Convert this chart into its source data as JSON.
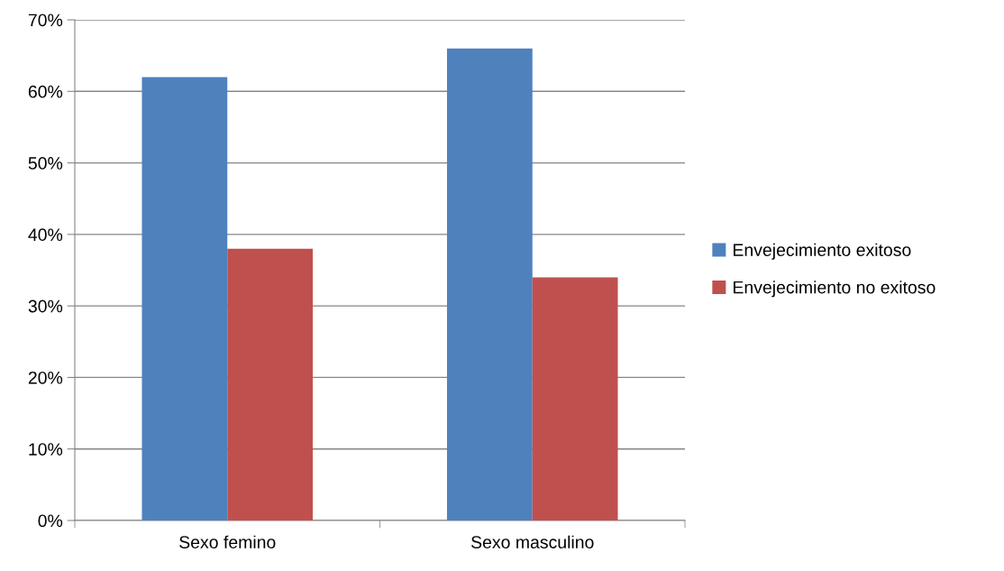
{
  "chart_data": {
    "type": "bar",
    "categories": [
      "Sexo femino",
      "Sexo masculino"
    ],
    "series": [
      {
        "name": "Envejecimiento exitoso",
        "color": "#4f81bd",
        "values": [
          62,
          66
        ]
      },
      {
        "name": "Envejecimiento no exitoso",
        "color": "#c0504d",
        "values": [
          38,
          34
        ]
      }
    ],
    "ylim": [
      0,
      70
    ],
    "yticks": [
      {
        "value": 0,
        "label": "0%"
      },
      {
        "value": 10,
        "label": "10%"
      },
      {
        "value": 20,
        "label": "20%"
      },
      {
        "value": 30,
        "label": "30%"
      },
      {
        "value": 40,
        "label": "40%"
      },
      {
        "value": 50,
        "label": "50%"
      },
      {
        "value": 60,
        "label": "60%"
      },
      {
        "value": 70,
        "label": "70%"
      }
    ],
    "grid": "y",
    "legend": "right"
  }
}
